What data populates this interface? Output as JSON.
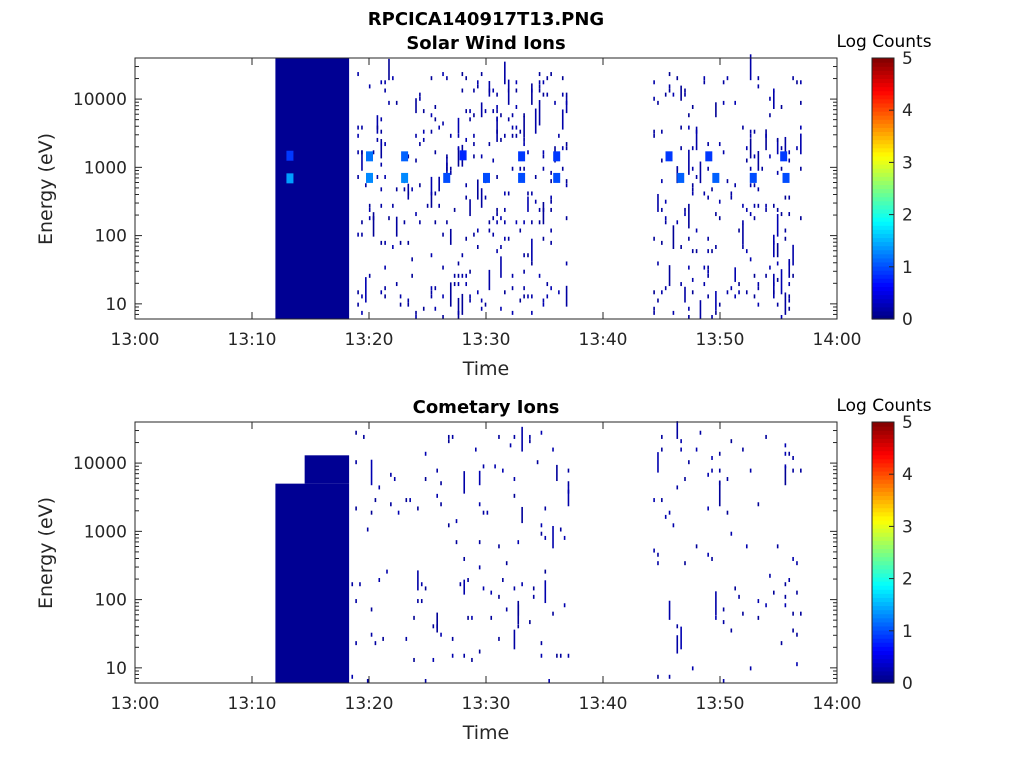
{
  "figure": {
    "title": "RPCICA140917T13.PNG"
  },
  "colormap": [
    "#00007f",
    "#0000ff",
    "#007fff",
    "#00ffff",
    "#7fff7f",
    "#ffff00",
    "#ff7f00",
    "#ff0000",
    "#7f0000"
  ],
  "chart_data": [
    {
      "type": "heatmap",
      "title": "Solar Wind Ions",
      "xlabel": "Time",
      "ylabel": "Energy (eV)",
      "x_ticks": [
        "13:00",
        "13:10",
        "13:20",
        "13:30",
        "13:40",
        "13:50",
        "14:00"
      ],
      "x_range": [
        "13:00",
        "14:00"
      ],
      "y_scale": "log",
      "y_ticks": [
        "10",
        "100",
        "1000",
        "10000"
      ],
      "y_range": [
        6,
        40000
      ],
      "colorbar": {
        "title": "Log Counts",
        "ticks": [
          "0",
          "1",
          "2",
          "3",
          "4",
          "5"
        ],
        "range": [
          0,
          5
        ]
      },
      "blocks": [
        {
          "t_start": "13:12",
          "t_end": "13:18.3",
          "e_min": 6,
          "e_max": 40000,
          "value": 0.1
        }
      ],
      "highlights": [
        {
          "time": "13:13.2",
          "energy": 690,
          "value": 1.4
        },
        {
          "time": "13:13.2",
          "energy": 1480,
          "value": 0.9
        },
        {
          "time": "13:20",
          "energy": 1450,
          "value": 1.2
        },
        {
          "time": "13:20",
          "energy": 700,
          "value": 1.3
        },
        {
          "time": "13:23",
          "energy": 1450,
          "value": 1.1
        },
        {
          "time": "13:23",
          "energy": 700,
          "value": 1.3
        },
        {
          "time": "13:26.6",
          "energy": 700,
          "value": 1.0
        },
        {
          "time": "13:28",
          "energy": 1500,
          "value": 0.8
        },
        {
          "time": "13:30",
          "energy": 700,
          "value": 1.0
        },
        {
          "time": "13:33",
          "energy": 1450,
          "value": 0.9
        },
        {
          "time": "13:33",
          "energy": 700,
          "value": 1.0
        },
        {
          "time": "13:36",
          "energy": 1450,
          "value": 0.9
        },
        {
          "time": "13:36",
          "energy": 700,
          "value": 1.0
        },
        {
          "time": "13:45.6",
          "energy": 1450,
          "value": 0.9
        },
        {
          "time": "13:46.6",
          "energy": 700,
          "value": 1.1
        },
        {
          "time": "13:49",
          "energy": 1450,
          "value": 0.9
        },
        {
          "time": "13:49.6",
          "energy": 700,
          "value": 1.1
        },
        {
          "time": "13:52.8",
          "energy": 700,
          "value": 1.0
        },
        {
          "time": "13:55.4",
          "energy": 1450,
          "value": 0.9
        },
        {
          "time": "13:55.6",
          "energy": 700,
          "value": 1.0
        }
      ],
      "activity_windows": [
        [
          "13:19",
          "13:37"
        ],
        [
          "13:44.3",
          "13:57"
        ]
      ],
      "active_energy_range": [
        6,
        25000
      ]
    },
    {
      "type": "heatmap",
      "title": "Cometary Ions",
      "xlabel": "Time",
      "ylabel": "Energy (eV)",
      "x_ticks": [
        "13:00",
        "13:10",
        "13:20",
        "13:30",
        "13:40",
        "13:50",
        "14:00"
      ],
      "x_range": [
        "13:00",
        "14:00"
      ],
      "y_scale": "log",
      "y_ticks": [
        "10",
        "100",
        "1000",
        "10000"
      ],
      "y_range": [
        6,
        40000
      ],
      "colorbar": {
        "title": "Log Counts",
        "ticks": [
          "0",
          "1",
          "2",
          "3",
          "4",
          "5"
        ],
        "range": [
          0,
          5
        ]
      },
      "blocks": [
        {
          "t_start": "13:12",
          "t_end": "13:18.3",
          "e_min": 6,
          "e_max": 5000,
          "value": 0.1
        },
        {
          "t_start": "13:14.5",
          "t_end": "13:18.3",
          "e_min": 5000,
          "e_max": 13000,
          "value": 0.1
        }
      ],
      "highlights": [],
      "activity_windows": [
        [
          "13:18.5",
          "13:37"
        ],
        [
          "13:44.3",
          "13:57"
        ]
      ],
      "active_energy_range": [
        6,
        30000
      ]
    }
  ]
}
